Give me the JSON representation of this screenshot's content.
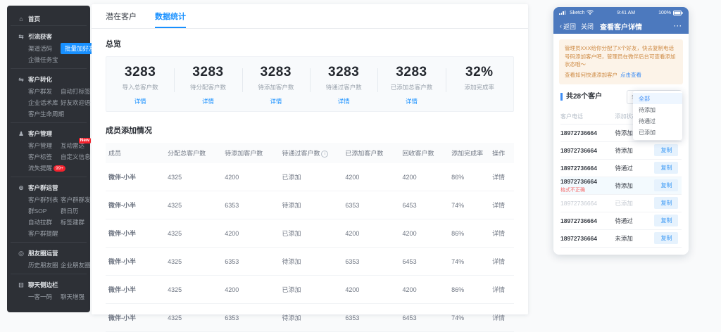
{
  "colors": {
    "accent": "#1890ff",
    "phone_nav_blue": "#4c79be",
    "link_blue": "#3d8df5",
    "danger_red": "#f5222d",
    "note_red": "#f56c6c",
    "warning_text": "#ce8b45",
    "warning_bg": "#fcf3e8",
    "sidebar_bg": "#2d3036"
  },
  "sidebar": {
    "home": {
      "icon": "home-icon",
      "label": "首页"
    },
    "sections": [
      {
        "icon": "traffic-icon",
        "title": "引流获客",
        "items": [
          {
            "label": "渠道活码"
          },
          {
            "label": "批量加好友",
            "active": true
          },
          {
            "label": "企微任务宝"
          }
        ]
      },
      {
        "icon": "convert-icon",
        "title": "客户转化",
        "items": [
          {
            "label": "客户群发"
          },
          {
            "label": "自动打标签"
          },
          {
            "label": "企业话术库"
          },
          {
            "label": "好友欢迎语"
          },
          {
            "label": "客户生命周期"
          }
        ]
      },
      {
        "icon": "customer-icon",
        "title": "客户管理",
        "items": [
          {
            "label": "客户管理"
          },
          {
            "label": "互动雷达",
            "badge": "New"
          },
          {
            "label": "客户标签"
          },
          {
            "label": "自定义信息"
          },
          {
            "label": "流失提醒",
            "pill": "99+"
          }
        ]
      },
      {
        "icon": "group-icon",
        "title": "客户群运营",
        "items": [
          {
            "label": "客户群列表"
          },
          {
            "label": "客户群群发"
          },
          {
            "label": "群SOP"
          },
          {
            "label": "群日历"
          },
          {
            "label": "自动拉群"
          },
          {
            "label": "标签建群"
          },
          {
            "label": "客户群提醒"
          }
        ]
      },
      {
        "icon": "moments-icon",
        "title": "朋友圈运营",
        "items": [
          {
            "label": "历史朋友圈"
          },
          {
            "label": "企业朋友圈"
          }
        ]
      },
      {
        "icon": "chat-sidebar-icon",
        "title": "聊天侧边栏",
        "items": [
          {
            "label": "一客一码"
          },
          {
            "label": "聊天增强"
          }
        ]
      }
    ]
  },
  "main": {
    "tabs": [
      {
        "label": "潜在客户",
        "active": false
      },
      {
        "label": "数据统计",
        "active": true
      }
    ],
    "overview": {
      "title": "总览",
      "detail_label": "详情",
      "stats": [
        {
          "value": "3283",
          "label": "导入总客户数",
          "link": true
        },
        {
          "value": "3283",
          "label": "待分配客户数",
          "link": true
        },
        {
          "value": "3283",
          "label": "待添加客户数",
          "link": true
        },
        {
          "value": "3283",
          "label": "待通过客户数",
          "link": true
        },
        {
          "value": "3283",
          "label": "已添加总客户数",
          "link": true
        },
        {
          "value": "32%",
          "label": "添加完成率",
          "link": false
        }
      ]
    },
    "member_table": {
      "title": "成员添加情况",
      "columns": [
        "成员",
        "分配总客户数",
        "待添加客户数",
        "待通过客户数",
        "已添加客户数",
        "回收客户数",
        "添加完成率",
        "操作"
      ],
      "info_column_index": 3,
      "action_label": "详情",
      "rows": [
        [
          "微伴-小半",
          "4325",
          "4200",
          "已添加",
          "4200",
          "4200",
          "86%"
        ],
        [
          "微伴-小半",
          "4325",
          "6353",
          "待添加",
          "6353",
          "6453",
          "74%"
        ],
        [
          "微伴-小半",
          "4325",
          "4200",
          "已添加",
          "4200",
          "4200",
          "86%"
        ],
        [
          "微伴-小半",
          "4325",
          "6353",
          "待添加",
          "6353",
          "6453",
          "74%"
        ],
        [
          "微伴-小半",
          "4325",
          "4200",
          "已添加",
          "4200",
          "4200",
          "86%"
        ],
        [
          "微伴-小半",
          "4325",
          "6353",
          "待添加",
          "6353",
          "6453",
          "74%"
        ]
      ]
    }
  },
  "phone": {
    "status_bar": {
      "carrier": "Sketch",
      "time": "9:41 AM",
      "battery": "100%"
    },
    "nav": {
      "back": "返回",
      "close": "关闭",
      "title": "查看客户详情",
      "more": "···"
    },
    "notice": {
      "text": "管理员XXX给你分配了X个好友，快去复制电话号码添加客户吧，管理员在微伴后台可查看添加状态哦～",
      "prompt": "查看如何快速添加客户",
      "link": "点击查看"
    },
    "list": {
      "header": "共28个客户",
      "filter_value": "全部",
      "dropdown_options": [
        {
          "label": "全部",
          "selected": true
        },
        {
          "label": "待添加"
        },
        {
          "label": "待通过"
        },
        {
          "label": "已添加"
        }
      ],
      "columns": [
        "客户电话",
        "添加状态"
      ],
      "copy_label": "复制",
      "rows": [
        {
          "phone": "18972736664",
          "status": "待添加"
        },
        {
          "phone": "18972736664",
          "status": "待添加"
        },
        {
          "phone": "18972736664",
          "status": "待通过"
        },
        {
          "phone": "18972736664",
          "status": "待添加",
          "note": "格式不正确",
          "highlight": true
        },
        {
          "phone": "18972736664",
          "status": "已添加",
          "disabled": true
        },
        {
          "phone": "18972736664",
          "status": "待通过"
        },
        {
          "phone": "18972736664",
          "status": "未添加"
        }
      ]
    }
  }
}
